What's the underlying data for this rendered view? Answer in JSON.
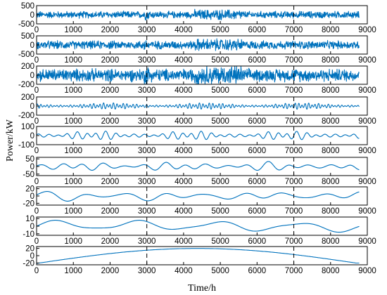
{
  "chart_data": [
    {
      "type": "line",
      "yticks": [
        "500",
        "0",
        "-500"
      ],
      "ytick_values": [
        500,
        0,
        -500
      ],
      "ylim": [
        -500,
        500
      ],
      "xlim": [
        0,
        9000
      ],
      "xticks": [
        "0",
        "1000",
        "2000",
        "3000",
        "4000",
        "5000",
        "6000",
        "7000",
        "8000",
        "9000"
      ],
      "series": [
        {
          "style": "noise",
          "amplitude": 220,
          "periods": []
        }
      ],
      "color": "#0072BD"
    },
    {
      "type": "line",
      "yticks": [
        "500",
        "0",
        "-500"
      ],
      "ytick_values": [
        500,
        0,
        -500
      ],
      "ylim": [
        -500,
        500
      ],
      "xlim": [
        0,
        9000
      ],
      "xticks": [
        "0",
        "1000",
        "2000",
        "3000",
        "4000",
        "5000",
        "6000",
        "7000",
        "8000",
        "9000"
      ],
      "series": [
        {
          "style": "noise",
          "amplitude": 260,
          "periods": []
        }
      ],
      "color": "#0072BD"
    },
    {
      "type": "line",
      "yticks": [
        "200",
        "0",
        "-200"
      ],
      "ytick_values": [
        200,
        0,
        -200
      ],
      "ylim": [
        -200,
        200
      ],
      "xlim": [
        0,
        9000
      ],
      "xticks": [
        "0",
        "1000",
        "2000",
        "3000",
        "4000",
        "5000",
        "6000",
        "7000",
        "8000",
        "9000"
      ],
      "series": [
        {
          "style": "noise",
          "amplitude": 160,
          "periods": []
        }
      ],
      "color": "#0072BD"
    },
    {
      "type": "line",
      "yticks": [
        "200",
        "0",
        "-200"
      ],
      "ytick_values": [
        200,
        0,
        -200
      ],
      "ylim": [
        -200,
        200
      ],
      "xlim": [
        0,
        9000
      ],
      "xticks": [
        "0",
        "1000",
        "2000",
        "3000",
        "4000",
        "5000",
        "6000",
        "7000",
        "8000",
        "9000"
      ],
      "series": [
        {
          "style": "wave",
          "amplitude": 60,
          "periods": [
            90,
            130
          ]
        }
      ],
      "color": "#0072BD"
    },
    {
      "type": "line",
      "yticks": [
        "100",
        "0",
        "-100"
      ],
      "ytick_values": [
        100,
        0,
        -100
      ],
      "ylim": [
        -100,
        100
      ],
      "xlim": [
        0,
        9000
      ],
      "xticks": [
        "0",
        "1000",
        "2000",
        "3000",
        "4000",
        "5000",
        "6000",
        "7000",
        "8000",
        "9000"
      ],
      "series": [
        {
          "style": "wave",
          "amplitude": 45,
          "periods": [
            260,
            370
          ]
        }
      ],
      "color": "#0072BD"
    },
    {
      "type": "line",
      "yticks": [
        "50",
        "0",
        "-50"
      ],
      "ytick_values": [
        50,
        0,
        -50
      ],
      "ylim": [
        -60,
        60
      ],
      "xlim": [
        0,
        9000
      ],
      "xticks": [
        "0",
        "1000",
        "2000",
        "3000",
        "4000",
        "5000",
        "6000",
        "7000",
        "8000",
        "9000"
      ],
      "series": [
        {
          "style": "wave",
          "amplitude": 28,
          "periods": [
            560,
            900
          ]
        }
      ],
      "color": "#0072BD"
    },
    {
      "type": "line",
      "yticks": [
        "20",
        "0",
        "-20"
      ],
      "ytick_values": [
        20,
        0,
        -20
      ],
      "ylim": [
        -25,
        25
      ],
      "xlim": [
        0,
        9000
      ],
      "xticks": [
        "0",
        "1000",
        "2000",
        "3000",
        "4000",
        "5000",
        "6000",
        "7000",
        "8000",
        "9000"
      ],
      "series": [
        {
          "style": "wave",
          "amplitude": 14,
          "periods": [
            1080,
            2100
          ]
        }
      ],
      "color": "#0072BD"
    },
    {
      "type": "line",
      "yticks": [
        "10",
        "0",
        "-10"
      ],
      "ytick_values": [
        10,
        0,
        -10
      ],
      "ylim": [
        -12,
        12
      ],
      "xlim": [
        0,
        9000
      ],
      "xticks": [
        "0",
        "1000",
        "2000",
        "3000",
        "4000",
        "5000",
        "6000",
        "7000",
        "8000",
        "9000"
      ],
      "series": [
        {
          "style": "wave",
          "amplitude": 8,
          "periods": [
            2200
          ]
        }
      ],
      "color": "#0072BD"
    },
    {
      "type": "line",
      "yticks": [
        "20",
        "0",
        "-20"
      ],
      "ytick_values": [
        20,
        0,
        -20
      ],
      "ylim": [
        -25,
        25
      ],
      "xlim": [
        0,
        9000
      ],
      "xticks": [
        "0",
        "1000",
        "2000",
        "3000",
        "4000",
        "5000",
        "6000",
        "7000",
        "8000",
        "9000"
      ],
      "series": [
        {
          "style": "trend",
          "amplitude": 22,
          "periods": []
        }
      ],
      "color": "#0072BD"
    }
  ],
  "ylabel": "Power/kW",
  "xlabel": "Time/h",
  "grid_x_at": [
    3000,
    7000
  ],
  "grid_style": "dashed"
}
